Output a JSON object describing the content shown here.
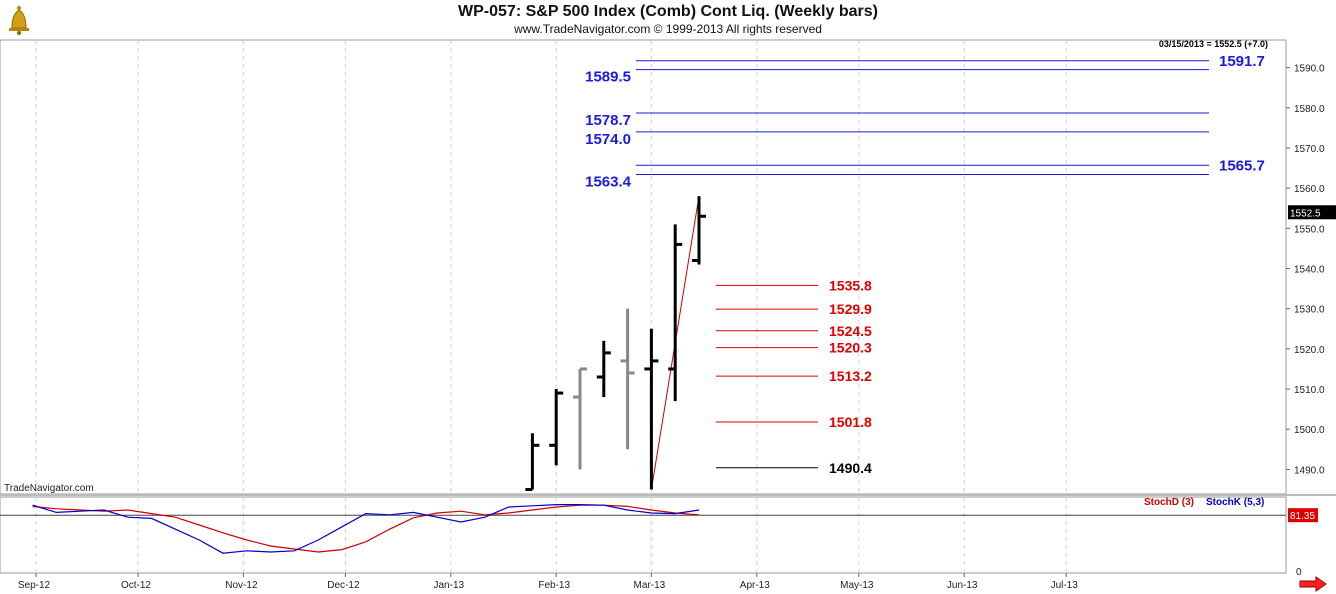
{
  "header": {
    "title": "WP-057:  S&P 500 Index (Comb) Cont Liq.  (Weekly bars)",
    "subtitle": "www.TradeNavigator.com © 1999-2013 All rights reserved",
    "logo_icon": "gold-bell-logo-icon",
    "nav_icon": "red-right-arrow-icon"
  },
  "chart_data": [
    {
      "type": "bar",
      "subtype": "ohlc",
      "price_readout": "03/15/2013 = 1552.5 (+7.0)",
      "last_price_label": "1552.5",
      "watermark": "TradeNavigator.com",
      "ylim": [
        1484,
        1597
      ],
      "y_ticks": [
        "1490.0",
        "1500.0",
        "1510.0",
        "1520.0",
        "1530.0",
        "1540.0",
        "1550.0",
        "1560.0",
        "1570.0",
        "1580.0",
        "1590.0"
      ],
      "x_ticks": [
        "Sep-12",
        "Oct-12",
        "Nov-12",
        "Dec-12",
        "Jan-13",
        "Feb-13",
        "Mar-13",
        "Apr-13",
        "May-13",
        "Jun-13",
        "Jul-13"
      ],
      "grid": true,
      "bars": [
        {
          "date": "2013-01-25",
          "open": 1485,
          "high": 1499,
          "low": 1485,
          "close": 1496,
          "color": "#000000"
        },
        {
          "date": "2013-02-01",
          "open": 1496,
          "high": 1510,
          "low": 1491,
          "close": 1509,
          "color": "#000000"
        },
        {
          "date": "2013-02-08",
          "open": 1508,
          "high": 1515,
          "low": 1490,
          "close": 1515,
          "color": "#888888"
        },
        {
          "date": "2013-02-15",
          "open": 1513,
          "high": 1522,
          "low": 1508,
          "close": 1519,
          "color": "#000000"
        },
        {
          "date": "2013-02-22",
          "open": 1517,
          "high": 1530,
          "low": 1495,
          "close": 1514,
          "color": "#888888"
        },
        {
          "date": "2013-03-01",
          "open": 1515,
          "high": 1525,
          "low": 1485,
          "close": 1517,
          "color": "#000000"
        },
        {
          "date": "2013-03-08",
          "open": 1515,
          "high": 1551,
          "low": 1507,
          "close": 1546,
          "color": "#000000"
        },
        {
          "date": "2013-03-15",
          "open": 1542,
          "high": 1558,
          "low": 1541,
          "close": 1553,
          "color": "#000000"
        }
      ],
      "trendline": {
        "from": {
          "date": "2013-03-01",
          "value": 1485
        },
        "to": {
          "date": "2013-03-15",
          "value": 1558
        },
        "color": "#cc0000"
      },
      "resistance_levels": [
        {
          "value": 1589.5,
          "label": "1589.5",
          "side": "left"
        },
        {
          "value": 1591.7,
          "label": "1591.7",
          "side": "right"
        },
        {
          "value": 1578.7,
          "label": "1578.7",
          "side": "left"
        },
        {
          "value": 1574.0,
          "label": "1574.0",
          "side": "left"
        },
        {
          "value": 1563.4,
          "label": "1563.4",
          "side": "left"
        },
        {
          "value": 1565.7,
          "label": "1565.7",
          "side": "right"
        }
      ],
      "support_levels": [
        {
          "value": 1535.8,
          "label": "1535.8",
          "color": "#e00000"
        },
        {
          "value": 1529.9,
          "label": "1529.9",
          "color": "#e00000"
        },
        {
          "value": 1524.5,
          "label": "1524.5",
          "color": "#e00000"
        },
        {
          "value": 1520.3,
          "label": "1520.3",
          "color": "#e00000"
        },
        {
          "value": 1513.2,
          "label": "1513.2",
          "color": "#e00000"
        },
        {
          "value": 1501.8,
          "label": "1501.8",
          "color": "#e00000"
        },
        {
          "value": 1490.4,
          "label": "1490.4",
          "color": "#000000"
        }
      ],
      "colors": {
        "resistance": "#1a1ae6",
        "support": "#e00000",
        "bars": "#000000",
        "bars_alt": "#888888",
        "trend": "#cc0000"
      }
    },
    {
      "type": "line",
      "ylim": [
        0,
        100
      ],
      "last_value_label": "81.35",
      "y_tick_labels": [
        "0"
      ],
      "series": [
        {
          "name": "StochD (3)",
          "color": "#d00000",
          "x": [
            "2012-08-31",
            "2012-09-07",
            "2012-09-14",
            "2012-09-21",
            "2012-09-28",
            "2012-10-05",
            "2012-10-12",
            "2012-10-19",
            "2012-10-26",
            "2012-11-02",
            "2012-11-09",
            "2012-11-16",
            "2012-11-23",
            "2012-11-30",
            "2012-12-07",
            "2012-12-14",
            "2012-12-21",
            "2012-12-28",
            "2013-01-04",
            "2013-01-11",
            "2013-01-18",
            "2013-01-25",
            "2013-02-01",
            "2013-02-08",
            "2013-02-15",
            "2013-02-22",
            "2013-03-01",
            "2013-03-08",
            "2013-03-15"
          ],
          "values": [
            96,
            92,
            90,
            88,
            90,
            84,
            78,
            65,
            52,
            40,
            30,
            25,
            20,
            24,
            37,
            58,
            77,
            85,
            88,
            82,
            85,
            90,
            95,
            98,
            98,
            96,
            90,
            85,
            82
          ]
        },
        {
          "name": "StochK (5,3)",
          "color": "#0000cc",
          "x": [
            "2012-08-31",
            "2012-09-07",
            "2012-09-14",
            "2012-09-21",
            "2012-09-28",
            "2012-10-05",
            "2012-10-12",
            "2012-10-19",
            "2012-10-26",
            "2012-11-02",
            "2012-11-09",
            "2012-11-16",
            "2012-11-23",
            "2012-11-30",
            "2012-12-07",
            "2012-12-14",
            "2012-12-21",
            "2012-12-28",
            "2013-01-04",
            "2013-01-11",
            "2013-01-18",
            "2013-01-25",
            "2013-02-01",
            "2013-02-08",
            "2013-02-15",
            "2013-02-22",
            "2013-03-01",
            "2013-03-08",
            "2013-03-15"
          ],
          "values": [
            98,
            86,
            88,
            90,
            78,
            76,
            58,
            40,
            18,
            22,
            20,
            22,
            40,
            62,
            84,
            82,
            86,
            78,
            70,
            78,
            95,
            97,
            99,
            99,
            98,
            90,
            85,
            84,
            90
          ]
        }
      ]
    }
  ]
}
